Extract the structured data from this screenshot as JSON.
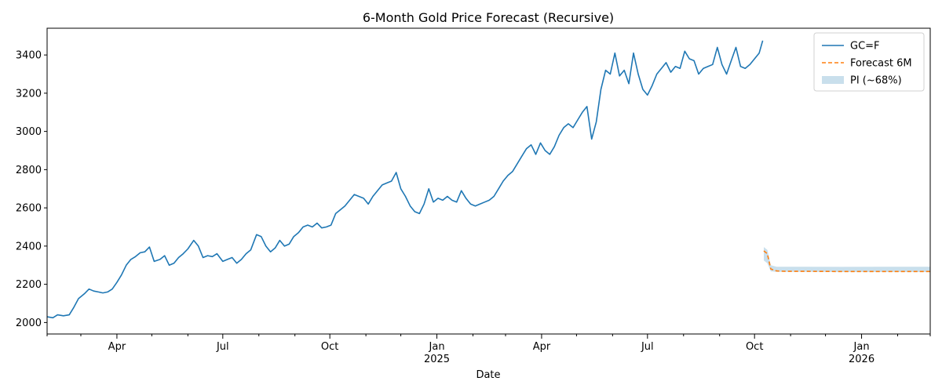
{
  "chart_data": {
    "type": "line",
    "title": "6-Month Gold Price Forecast (Recursive)",
    "xlabel": "Date",
    "ylabel": "",
    "xlim": [
      "2024-02-01",
      "2026-03-01"
    ],
    "ylim": [
      1940,
      3540
    ],
    "yticks": [
      2000,
      2200,
      2400,
      2600,
      2800,
      3000,
      3200,
      3400
    ],
    "xticks": [
      {
        "date": "2024-04-01",
        "label": "Apr",
        "sub": ""
      },
      {
        "date": "2024-07-01",
        "label": "Jul",
        "sub": ""
      },
      {
        "date": "2024-10-01",
        "label": "Oct",
        "sub": ""
      },
      {
        "date": "2025-01-01",
        "label": "Jan",
        "sub": "2025"
      },
      {
        "date": "2025-04-01",
        "label": "Apr",
        "sub": ""
      },
      {
        "date": "2025-07-01",
        "label": "Jul",
        "sub": ""
      },
      {
        "date": "2025-10-01",
        "label": "Oct",
        "sub": ""
      },
      {
        "date": "2026-01-01",
        "label": "Jan",
        "sub": "2026"
      }
    ],
    "minor_xticks": [
      "2024-02-01",
      "2024-03-01",
      "2024-05-01",
      "2024-06-01",
      "2024-08-01",
      "2024-09-01",
      "2024-11-01",
      "2024-12-01",
      "2025-02-01",
      "2025-03-01",
      "2025-05-01",
      "2025-06-01",
      "2025-08-01",
      "2025-09-01",
      "2025-11-01",
      "2025-12-01",
      "2026-02-01",
      "2026-03-01"
    ],
    "grid": false,
    "legend": {
      "position": "top-right"
    },
    "series": [
      {
        "name": "GC=F",
        "style": "solid",
        "color": "#1f77b4",
        "points": [
          [
            "2024-02-01",
            2030
          ],
          [
            "2024-02-06",
            2025
          ],
          [
            "2024-02-10",
            2040
          ],
          [
            "2024-02-15",
            2035
          ],
          [
            "2024-02-20",
            2040
          ],
          [
            "2024-02-24",
            2080
          ],
          [
            "2024-02-28",
            2125
          ],
          [
            "2024-03-04",
            2150
          ],
          [
            "2024-03-08",
            2175
          ],
          [
            "2024-03-12",
            2165
          ],
          [
            "2024-03-16",
            2160
          ],
          [
            "2024-03-20",
            2155
          ],
          [
            "2024-03-24",
            2160
          ],
          [
            "2024-03-28",
            2175
          ],
          [
            "2024-04-01",
            2210
          ],
          [
            "2024-04-05",
            2250
          ],
          [
            "2024-04-09",
            2300
          ],
          [
            "2024-04-13",
            2330
          ],
          [
            "2024-04-17",
            2345
          ],
          [
            "2024-04-21",
            2365
          ],
          [
            "2024-04-25",
            2370
          ],
          [
            "2024-04-29",
            2395
          ],
          [
            "2024-05-03",
            2320
          ],
          [
            "2024-05-08",
            2330
          ],
          [
            "2024-05-12",
            2350
          ],
          [
            "2024-05-16",
            2300
          ],
          [
            "2024-05-20",
            2310
          ],
          [
            "2024-05-24",
            2340
          ],
          [
            "2024-05-28",
            2360
          ],
          [
            "2024-06-01",
            2385
          ],
          [
            "2024-06-06",
            2430
          ],
          [
            "2024-06-10",
            2400
          ],
          [
            "2024-06-14",
            2340
          ],
          [
            "2024-06-18",
            2350
          ],
          [
            "2024-06-22",
            2345
          ],
          [
            "2024-06-26",
            2360
          ],
          [
            "2024-07-01",
            2320
          ],
          [
            "2024-07-05",
            2330
          ],
          [
            "2024-07-09",
            2340
          ],
          [
            "2024-07-13",
            2310
          ],
          [
            "2024-07-17",
            2330
          ],
          [
            "2024-07-21",
            2360
          ],
          [
            "2024-07-25",
            2380
          ],
          [
            "2024-07-30",
            2460
          ],
          [
            "2024-08-03",
            2450
          ],
          [
            "2024-08-07",
            2400
          ],
          [
            "2024-08-11",
            2370
          ],
          [
            "2024-08-15",
            2390
          ],
          [
            "2024-08-19",
            2430
          ],
          [
            "2024-08-23",
            2400
          ],
          [
            "2024-08-27",
            2410
          ],
          [
            "2024-08-31",
            2450
          ],
          [
            "2024-09-04",
            2470
          ],
          [
            "2024-09-08",
            2500
          ],
          [
            "2024-09-12",
            2510
          ],
          [
            "2024-09-16",
            2500
          ],
          [
            "2024-09-20",
            2520
          ],
          [
            "2024-09-24",
            2495
          ],
          [
            "2024-09-28",
            2500
          ],
          [
            "2024-10-02",
            2510
          ],
          [
            "2024-10-06",
            2570
          ],
          [
            "2024-10-10",
            2590
          ],
          [
            "2024-10-14",
            2610
          ],
          [
            "2024-10-18",
            2640
          ],
          [
            "2024-10-22",
            2670
          ],
          [
            "2024-10-26",
            2660
          ],
          [
            "2024-10-30",
            2650
          ],
          [
            "2024-11-03",
            2620
          ],
          [
            "2024-11-07",
            2660
          ],
          [
            "2024-11-11",
            2690
          ],
          [
            "2024-11-15",
            2720
          ],
          [
            "2024-11-19",
            2730
          ],
          [
            "2024-11-23",
            2740
          ],
          [
            "2024-11-27",
            2785
          ],
          [
            "2024-12-01",
            2700
          ],
          [
            "2024-12-05",
            2660
          ],
          [
            "2024-12-09",
            2610
          ],
          [
            "2024-12-13",
            2580
          ],
          [
            "2024-12-17",
            2570
          ],
          [
            "2024-12-21",
            2620
          ],
          [
            "2024-12-25",
            2700
          ],
          [
            "2024-12-29",
            2630
          ],
          [
            "2025-01-02",
            2650
          ],
          [
            "2025-01-06",
            2640
          ],
          [
            "2025-01-10",
            2660
          ],
          [
            "2025-01-14",
            2640
          ],
          [
            "2025-01-18",
            2630
          ],
          [
            "2025-01-22",
            2690
          ],
          [
            "2025-01-26",
            2650
          ],
          [
            "2025-01-30",
            2620
          ],
          [
            "2025-02-03",
            2610
          ],
          [
            "2025-02-07",
            2620
          ],
          [
            "2025-02-11",
            2630
          ],
          [
            "2025-02-15",
            2640
          ],
          [
            "2025-02-19",
            2660
          ],
          [
            "2025-02-23",
            2700
          ],
          [
            "2025-02-27",
            2740
          ],
          [
            "2025-03-03",
            2770
          ],
          [
            "2025-03-07",
            2790
          ],
          [
            "2025-03-11",
            2830
          ],
          [
            "2025-03-15",
            2870
          ],
          [
            "2025-03-19",
            2910
          ],
          [
            "2025-03-23",
            2930
          ],
          [
            "2025-03-27",
            2880
          ],
          [
            "2025-03-31",
            2940
          ],
          [
            "2025-04-04",
            2900
          ],
          [
            "2025-04-08",
            2880
          ],
          [
            "2025-04-12",
            2920
          ],
          [
            "2025-04-16",
            2980
          ],
          [
            "2025-04-20",
            3020
          ],
          [
            "2025-04-24",
            3040
          ],
          [
            "2025-04-28",
            3020
          ],
          [
            "2025-05-02",
            3060
          ],
          [
            "2025-05-06",
            3100
          ],
          [
            "2025-05-10",
            3130
          ],
          [
            "2025-05-14",
            2960
          ],
          [
            "2025-05-18",
            3050
          ],
          [
            "2025-05-22",
            3220
          ],
          [
            "2025-05-26",
            3320
          ],
          [
            "2025-05-30",
            3300
          ],
          [
            "2025-06-03",
            3410
          ],
          [
            "2025-06-07",
            3290
          ],
          [
            "2025-06-11",
            3320
          ],
          [
            "2025-06-15",
            3250
          ],
          [
            "2025-06-19",
            3410
          ],
          [
            "2025-06-23",
            3300
          ],
          [
            "2025-06-27",
            3220
          ],
          [
            "2025-07-01",
            3190
          ],
          [
            "2025-07-05",
            3240
          ],
          [
            "2025-07-09",
            3300
          ],
          [
            "2025-07-13",
            3330
          ],
          [
            "2025-07-17",
            3360
          ],
          [
            "2025-07-21",
            3310
          ],
          [
            "2025-07-25",
            3340
          ],
          [
            "2025-07-29",
            3330
          ],
          [
            "2025-08-02",
            3420
          ],
          [
            "2025-08-06",
            3380
          ],
          [
            "2025-08-10",
            3370
          ],
          [
            "2025-08-14",
            3300
          ],
          [
            "2025-08-18",
            3330
          ],
          [
            "2025-08-22",
            3340
          ],
          [
            "2025-08-26",
            3350
          ],
          [
            "2025-08-30",
            3440
          ],
          [
            "2025-09-03",
            3350
          ],
          [
            "2025-09-07",
            3300
          ],
          [
            "2025-09-11",
            3370
          ],
          [
            "2025-09-15",
            3440
          ],
          [
            "2025-09-19",
            3340
          ],
          [
            "2025-09-23",
            3330
          ],
          [
            "2025-09-27",
            3350
          ],
          [
            "2025-10-01",
            3380
          ],
          [
            "2025-10-05",
            3410
          ],
          [
            "2025-10-08",
            3475
          ]
        ]
      },
      {
        "name": "Forecast 6M",
        "style": "dashed",
        "color": "#ff7f0e",
        "points": [
          [
            "2025-10-09",
            2375
          ],
          [
            "2025-10-12",
            2360
          ],
          [
            "2025-10-15",
            2280
          ],
          [
            "2025-10-20",
            2270
          ],
          [
            "2025-10-28",
            2268
          ],
          [
            "2025-11-15",
            2268
          ],
          [
            "2025-12-15",
            2267
          ],
          [
            "2026-01-15",
            2267
          ],
          [
            "2026-02-15",
            2267
          ],
          [
            "2026-03-01",
            2267
          ]
        ]
      }
    ],
    "band": {
      "name": "PI (~68%)",
      "color": "#c9dfec",
      "points": [
        [
          "2025-10-09",
          2325,
          2395
        ],
        [
          "2025-10-12",
          2310,
          2380
        ],
        [
          "2025-10-15",
          2268,
          2300
        ],
        [
          "2025-10-20",
          2265,
          2292
        ],
        [
          "2025-11-15",
          2265,
          2292
        ],
        [
          "2025-12-15",
          2264,
          2291
        ],
        [
          "2026-01-15",
          2264,
          2292
        ],
        [
          "2026-03-01",
          2264,
          2292
        ]
      ]
    }
  }
}
